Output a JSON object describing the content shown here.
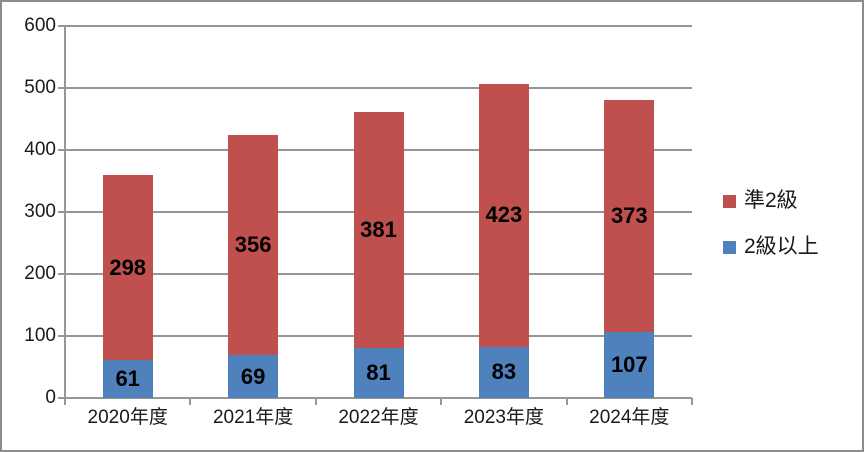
{
  "chart_data": {
    "type": "bar",
    "stacked": true,
    "title": "",
    "xlabel": "",
    "ylabel": "",
    "categories": [
      "2020年度",
      "2021年度",
      "2022年度",
      "2023年度",
      "2024年度"
    ],
    "series": [
      {
        "name": "2級以上",
        "color": "#4F81BD",
        "values": [
          61,
          69,
          81,
          83,
          107
        ]
      },
      {
        "name": "準2級",
        "color": "#C0504D",
        "values": [
          298,
          356,
          381,
          423,
          373
        ]
      }
    ],
    "stack_totals": [
      359,
      425,
      462,
      506,
      480
    ],
    "ylim": [
      0,
      600
    ],
    "yticks": [
      0,
      100,
      200,
      300,
      400,
      500,
      600
    ],
    "grid": true,
    "legend": {
      "position": "right",
      "order": [
        "準2級",
        "2級以上"
      ]
    }
  },
  "colors": {
    "gridline": "#969696",
    "axis": "#969696",
    "frame_border": "#8c8c8c",
    "background": "#ffffff",
    "label_text": "#000000",
    "axis_text": "#1a1a1a"
  }
}
